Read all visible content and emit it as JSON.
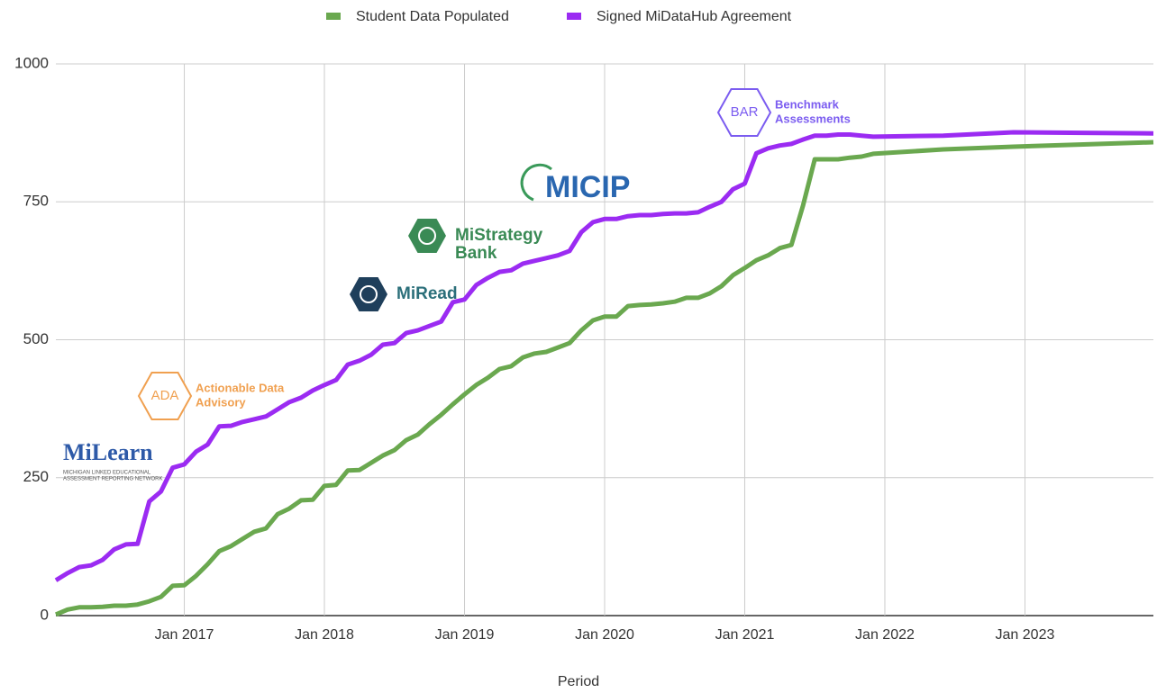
{
  "chart_data": {
    "type": "line",
    "x_label": "Period",
    "x": [
      "2016-02",
      "2016-03",
      "2016-04",
      "2016-05",
      "2016-06",
      "2016-07",
      "2016-08",
      "2016-09",
      "2016-10",
      "2016-11",
      "2016-12",
      "2017-01",
      "2017-02",
      "2017-03",
      "2017-04",
      "2017-05",
      "2017-06",
      "2017-07",
      "2017-08",
      "2017-09",
      "2017-10",
      "2017-11",
      "2017-12",
      "2018-01",
      "2018-02",
      "2018-03",
      "2018-04",
      "2018-05",
      "2018-06",
      "2018-07",
      "2018-08",
      "2018-09",
      "2018-10",
      "2018-11",
      "2018-12",
      "2019-01",
      "2019-02",
      "2019-03",
      "2019-04",
      "2019-05",
      "2019-06",
      "2019-07",
      "2019-08",
      "2019-09",
      "2019-10",
      "2019-11",
      "2019-12",
      "2020-01",
      "2020-02",
      "2020-03",
      "2020-04",
      "2020-05",
      "2020-06",
      "2020-07",
      "2020-08",
      "2020-09",
      "2020-10",
      "2020-11",
      "2020-12",
      "2021-01",
      "2021-02",
      "2021-03",
      "2021-04",
      "2021-05",
      "2021-06",
      "2021-07",
      "2021-08",
      "2021-09",
      "2021-10",
      "2021-11",
      "2021-12",
      "2022-06",
      "2022-12",
      "2023-06",
      "2023-12"
    ],
    "series": [
      {
        "name": "Student Data Populated",
        "color": "#6aa84f",
        "values": [
          2,
          11,
          15,
          15,
          16,
          18,
          18,
          20,
          26,
          34,
          54,
          55,
          72,
          93,
          117,
          126,
          139,
          152,
          158,
          184,
          194,
          209,
          210,
          235,
          237,
          263,
          264,
          277,
          290,
          300,
          318,
          328,
          347,
          364,
          383,
          401,
          418,
          431,
          447,
          452,
          468,
          475,
          478,
          486,
          494,
          517,
          535,
          542,
          542,
          561,
          563,
          564,
          566,
          569,
          576,
          576,
          584,
          597,
          617,
          630,
          644,
          653,
          666,
          672,
          744,
          827,
          827,
          827,
          830,
          832,
          837,
          845,
          850,
          854,
          858
        ]
      },
      {
        "name": "Signed MiDataHub Agreement",
        "color": "#9b2bf2",
        "values": [
          64,
          77,
          88,
          91,
          101,
          120,
          129,
          130,
          207,
          225,
          268,
          274,
          297,
          310,
          343,
          344,
          351,
          356,
          361,
          374,
          387,
          395,
          408,
          418,
          427,
          455,
          462,
          473,
          491,
          494,
          512,
          517,
          525,
          533,
          568,
          573,
          599,
          612,
          623,
          626,
          638,
          643,
          648,
          653,
          661,
          695,
          713,
          719,
          719,
          724,
          726,
          726,
          728,
          729,
          729,
          731,
          741,
          750,
          773,
          783,
          838,
          847,
          852,
          855,
          863,
          870,
          870,
          872,
          872,
          870,
          868,
          870,
          876,
          875,
          874
        ]
      }
    ],
    "xlim": [
      "2016-02",
      "2023-12"
    ],
    "xticks": [
      {
        "value": "2017-01",
        "label": "Jan 2017"
      },
      {
        "value": "2018-01",
        "label": "Jan 2018"
      },
      {
        "value": "2019-01",
        "label": "Jan 2019"
      },
      {
        "value": "2020-01",
        "label": "Jan 2020"
      },
      {
        "value": "2021-01",
        "label": "Jan 2021"
      },
      {
        "value": "2022-01",
        "label": "Jan 2022"
      },
      {
        "value": "2023-01",
        "label": "Jan 2023"
      }
    ],
    "ylim": [
      0,
      1000
    ],
    "yticks": [
      0,
      250,
      500,
      750,
      1000
    ],
    "grid": true,
    "legend": "top",
    "annotations": [
      {
        "name": "MiLearn",
        "lines": [
          "MICHIGAN LINKED EDUCATIONAL",
          "ASSESSMENT REPORTING NETWORK"
        ]
      },
      {
        "badge": "ADA",
        "lines": [
          "Actionable Data",
          "Advisory"
        ]
      },
      {
        "name": "MiRead"
      },
      {
        "name": "MiStrategy",
        "lines": [
          "Bank"
        ]
      },
      {
        "name": "MICIP"
      },
      {
        "badge": "BAR",
        "lines": [
          "Benchmark",
          "Assessments"
        ]
      }
    ]
  }
}
